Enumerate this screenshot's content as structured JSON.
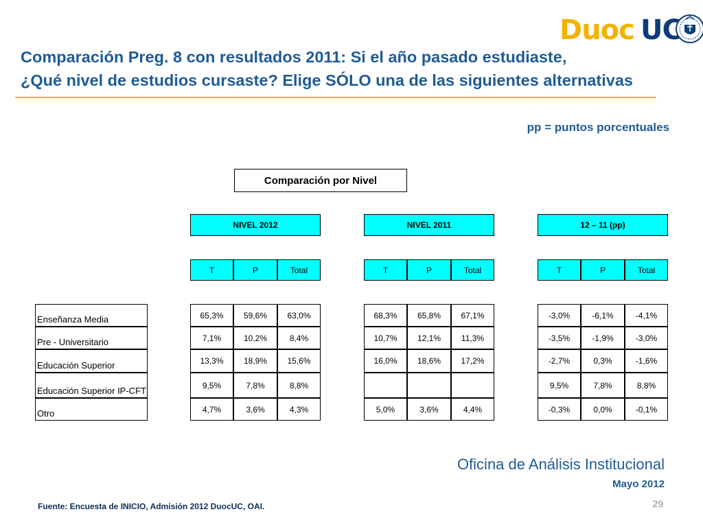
{
  "logo": {
    "word1": "Duoc",
    "word2": "UC"
  },
  "title": {
    "line1": "Comparación Preg. 8 con resultados 2011: Si el año pasado estudiaste,",
    "line2": "¿Qué nivel de estudios cursaste? Elige SÓLO una de las siguientes alternativas"
  },
  "pp_note": "pp = puntos porcentuales",
  "table": {
    "title": "Comparación por Nivel",
    "groups": [
      "NIVEL 2012",
      "NIVEL 2011",
      "12 – 11 (pp)"
    ],
    "subheaders": [
      "T",
      "P",
      "Total"
    ],
    "rows": [
      {
        "label": "Enseñanza Media",
        "values": [
          [
            "65,3%",
            "59,6%",
            "63,0%"
          ],
          [
            "68,3%",
            "65,8%",
            "67,1%"
          ],
          [
            "-3,0%",
            "-6,1%",
            "-4,1%"
          ]
        ]
      },
      {
        "label": "Pre - Universitario",
        "values": [
          [
            "7,1%",
            "10,2%",
            "8,4%"
          ],
          [
            "10,7%",
            "12,1%",
            "11,3%"
          ],
          [
            "-3,5%",
            "-1,9%",
            "-3,0%"
          ]
        ]
      },
      {
        "label": "Educación Superior",
        "values": [
          [
            "13,3%",
            "18,9%",
            "15,6%"
          ],
          [
            "16,0%",
            "18,6%",
            "17,2%"
          ],
          [
            "-2,7%",
            "0,3%",
            "-1,6%"
          ]
        ]
      },
      {
        "label": "Educación Superior IP-CFT",
        "values": [
          [
            "9,5%",
            "7,8%",
            "8,8%"
          ],
          [
            "",
            "",
            ""
          ],
          [
            "9,5%",
            "7,8%",
            "8,8%"
          ]
        ]
      },
      {
        "label": "Otro",
        "values": [
          [
            "4,7%",
            "3,6%",
            "4,3%"
          ],
          [
            "5,0%",
            "3,6%",
            "4,4%"
          ],
          [
            "-0,3%",
            "0,0%",
            "-0,1%"
          ]
        ]
      }
    ]
  },
  "footer": {
    "office": "Oficina de Análisis Institucional",
    "date": "Mayo 2012",
    "source": "Fuente: Encuesta de INICIO, Admisión 2012 DuocUC, OAI.",
    "page": "29"
  },
  "colors": {
    "title_blue": "#1f5b96",
    "accent_yellow": "#f2b300",
    "header_cyan": "#00ffff"
  }
}
